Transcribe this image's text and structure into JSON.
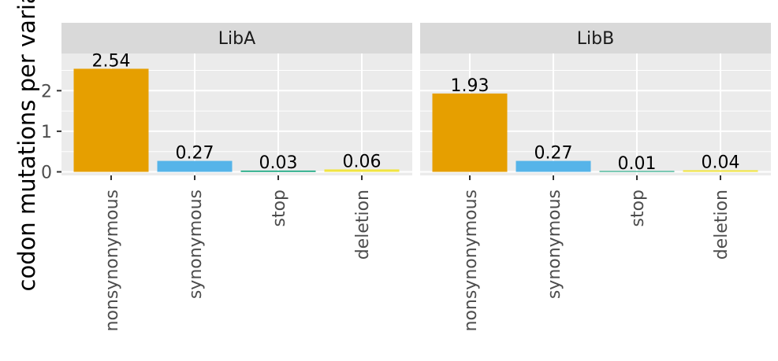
{
  "chart_data": {
    "type": "bar",
    "ylabel": "codon mutations per variant",
    "ylim": [
      0,
      2.95
    ],
    "yticks": [
      0,
      1,
      2
    ],
    "grid": true,
    "categories": [
      "nonsynonymous",
      "synonymous",
      "stop",
      "deletion"
    ],
    "colors": {
      "nonsynonymous": "#E69F00",
      "synonymous": "#56B4E9",
      "stop": "#009E73",
      "deletion": "#F0E442"
    },
    "panels": [
      {
        "name": "LibA",
        "values": [
          2.54,
          0.27,
          0.03,
          0.06
        ],
        "labels": [
          "2.54",
          "0.27",
          "0.03",
          "0.06"
        ]
      },
      {
        "name": "LibB",
        "values": [
          1.93,
          0.27,
          0.01,
          0.04
        ],
        "labels": [
          "1.93",
          "0.27",
          "0.01",
          "0.04"
        ]
      }
    ]
  }
}
